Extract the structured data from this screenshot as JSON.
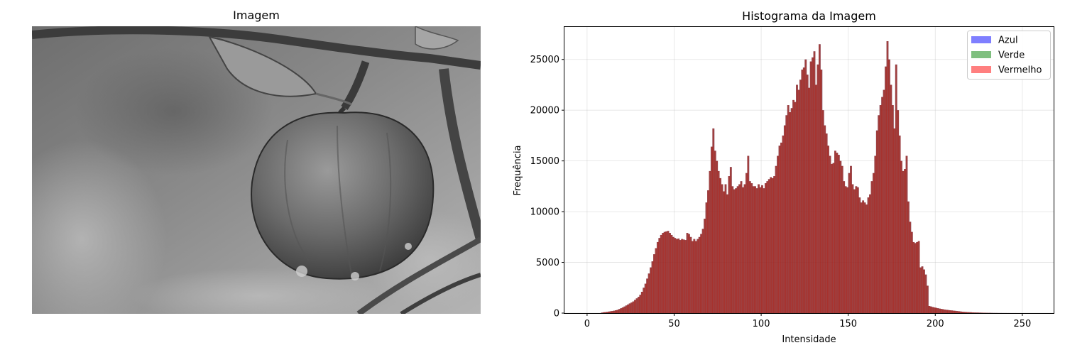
{
  "image_panel": {
    "title": "Imagem"
  },
  "chart_data": {
    "type": "bar",
    "title": "Histograma da Imagem",
    "xlabel": "Intensidade",
    "ylabel": "Frequência",
    "xlim": [
      -13,
      268
    ],
    "ylim": [
      0,
      28200
    ],
    "xticks": [
      0,
      50,
      100,
      150,
      200,
      250
    ],
    "yticks": [
      0,
      5000,
      10000,
      15000,
      20000,
      25000
    ],
    "grid": true,
    "legend_position": "top-right",
    "series": [
      {
        "name": "Azul",
        "color": "#0000ff",
        "opacity": 0.5
      },
      {
        "name": "Verde",
        "color": "#008000",
        "opacity": 0.5
      },
      {
        "name": "Vermelho",
        "color": "#ff0000",
        "opacity": 0.5
      }
    ],
    "bin_start": 0,
    "bin_width": 1,
    "values": [
      0,
      0,
      0,
      0,
      0,
      0,
      0,
      0,
      50,
      80,
      100,
      120,
      150,
      180,
      200,
      240,
      280,
      320,
      400,
      480,
      560,
      650,
      750,
      850,
      950,
      1050,
      1150,
      1300,
      1450,
      1600,
      1800,
      2100,
      2500,
      2900,
      3400,
      3900,
      4500,
      5100,
      5800,
      6400,
      7000,
      7400,
      7700,
      7900,
      8000,
      8050,
      8100,
      7900,
      7700,
      7500,
      7400,
      7300,
      7350,
      7200,
      7300,
      7250,
      7200,
      7900,
      7800,
      7500,
      7100,
      7300,
      7100,
      7300,
      7500,
      7800,
      8300,
      9300,
      10900,
      12100,
      14000,
      16400,
      18200,
      16000,
      15000,
      14000,
      13300,
      12700,
      12000,
      12700,
      11700,
      13500,
      14400,
      12500,
      12200,
      12300,
      12500,
      12700,
      13000,
      12400,
      12700,
      13800,
      15500,
      13000,
      12800,
      12500,
      12500,
      12300,
      12700,
      12400,
      12600,
      12300,
      12800,
      13000,
      13200,
      13400,
      13300,
      13500,
      14500,
      15500,
      16500,
      16800,
      17500,
      18500,
      19500,
      20500,
      19800,
      20200,
      21000,
      20800,
      22500,
      22000,
      23000,
      24000,
      24200,
      25000,
      23500,
      22200,
      24800,
      25200,
      25800,
      22500,
      24500,
      26500,
      24000,
      20000,
      18500,
      17700,
      16500,
      15500,
      14700,
      14800,
      16000,
      15800,
      15600,
      15000,
      14500,
      13000,
      12500,
      12400,
      13800,
      14500,
      12700,
      12200,
      12500,
      12400,
      11400,
      10900,
      11100,
      10900,
      10700,
      11400,
      11700,
      13000,
      13800,
      15500,
      18000,
      19500,
      20500,
      21300,
      22000,
      24300,
      26800,
      25000,
      22500,
      20500,
      18200,
      24500,
      20000,
      17500,
      15000,
      14000,
      14200,
      15500,
      11000,
      9000,
      8000,
      7000,
      6900,
      7000,
      7100,
      4500,
      4600,
      4300,
      3800,
      2700,
      700,
      650,
      600,
      560,
      520,
      480,
      440,
      410,
      380,
      350,
      320,
      300,
      280,
      260,
      240,
      220,
      200,
      180,
      160,
      140,
      120,
      110,
      100,
      90,
      80,
      70,
      60,
      55,
      50,
      45,
      40,
      35,
      30,
      25,
      20,
      20,
      15,
      10,
      10,
      8,
      6,
      5,
      4,
      3,
      3,
      2,
      2,
      1,
      1,
      1,
      1,
      0,
      0,
      0,
      0
    ]
  }
}
